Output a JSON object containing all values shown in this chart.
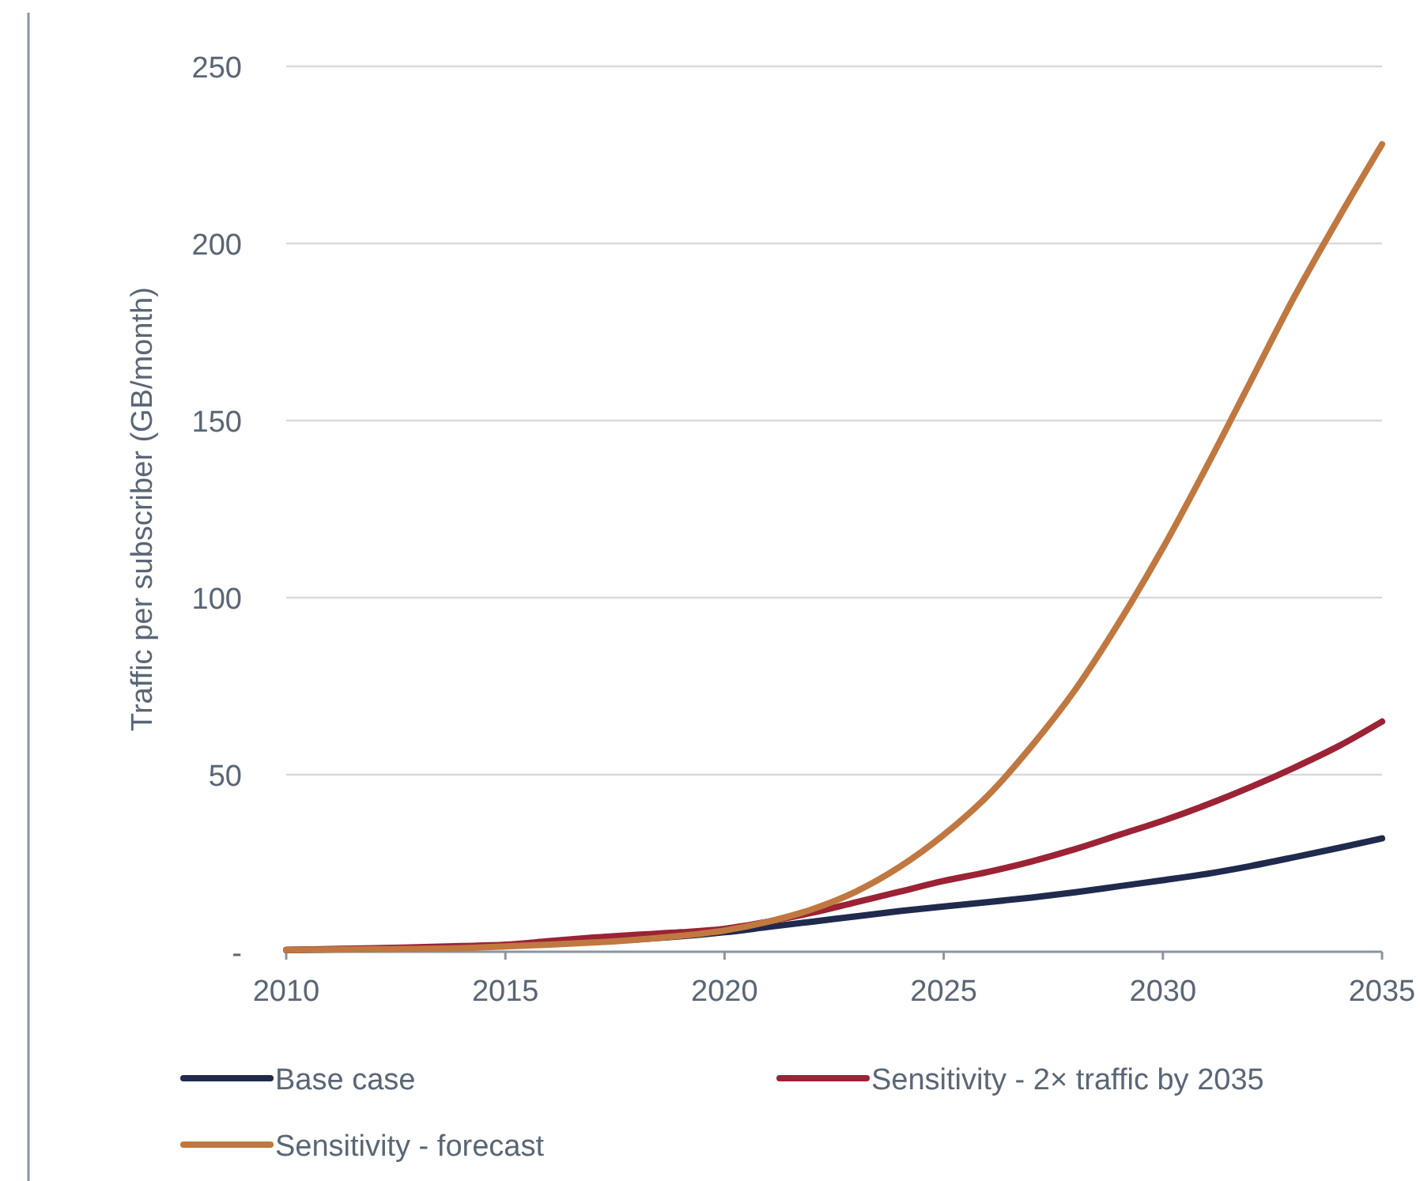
{
  "chart_data": {
    "type": "line",
    "ylabel": "Traffic per subscriber (GB/month)",
    "x": [
      2010,
      2011,
      2012,
      2013,
      2014,
      2015,
      2016,
      2017,
      2018,
      2019,
      2020,
      2021,
      2022,
      2023,
      2024,
      2025,
      2026,
      2027,
      2028,
      2029,
      2030,
      2031,
      2032,
      2033,
      2034,
      2035
    ],
    "xlim": [
      2010,
      2035
    ],
    "xticks": [
      2010,
      2015,
      2020,
      2025,
      2030,
      2035
    ],
    "ylim": [
      0,
      250
    ],
    "yticks": [
      {
        "value": 0,
        "label": "-"
      },
      50,
      100,
      150,
      200,
      250
    ],
    "grid": "y",
    "legend": "bottom",
    "marker": "none",
    "line_style": "solid",
    "series": [
      {
        "name": "Base case",
        "color": "#1f2a4d",
        "values": [
          0.5,
          null,
          null,
          null,
          1.4,
          1.8,
          2.3,
          null,
          null,
          null,
          5.5,
          7,
          8.5,
          10,
          11.5,
          12.8,
          14,
          15.3,
          16.8,
          18.5,
          20.2,
          22,
          24.2,
          26.7,
          29.3,
          32
        ]
      },
      {
        "name": "Sensitivity - 2× traffic by 2035",
        "color": "#9b2335",
        "values": [
          0.5,
          0.8,
          1,
          1.3,
          1.6,
          2,
          3,
          4,
          4.8,
          5.5,
          6.5,
          8.5,
          11,
          14,
          17,
          20,
          22.5,
          25.5,
          29,
          33,
          37,
          41.5,
          46.5,
          52,
          58,
          65
        ]
      },
      {
        "name": "Sensitivity - forecast",
        "color": "#c07840",
        "values": [
          0.5,
          0.6,
          0.7,
          0.8,
          1,
          1.5,
          2,
          2.6,
          3.4,
          4.5,
          6,
          8.5,
          12,
          17,
          24,
          33,
          44,
          58,
          74,
          93,
          114,
          137,
          161,
          185,
          207,
          228
        ]
      }
    ]
  }
}
